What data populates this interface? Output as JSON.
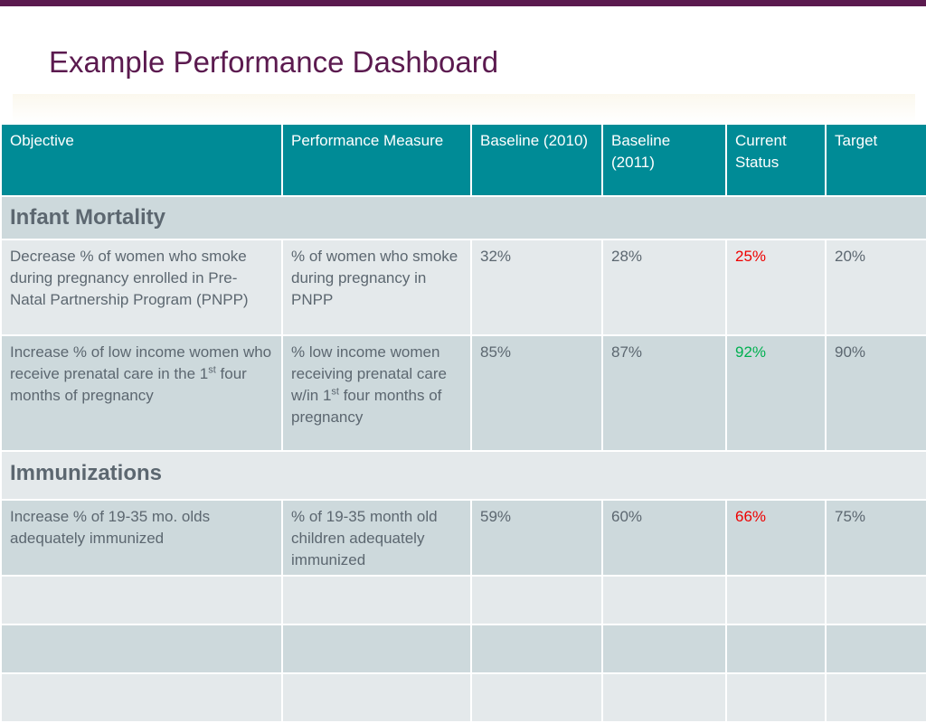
{
  "title": "Example Performance Dashboard",
  "headers": [
    "Objective",
    "Performance Measure",
    "Baseline (2010)",
    "Baseline (2011)",
    "Current Status",
    "Target"
  ],
  "sections": [
    {
      "name": "Infant Mortality",
      "rows": [
        {
          "objective": "Decrease % of women who smoke during pregnancy enrolled in Pre-Natal Partnership Program (PNPP)",
          "measure": "% of women who smoke during pregnancy in PNPP",
          "baseline_2010": "32%",
          "baseline_2011": "28%",
          "current": "25%",
          "current_color": "#ee0000",
          "target": "20%"
        },
        {
          "objective_pre": "Increase % of low income women who receive prenatal care in the 1",
          "objective_sup": "st",
          "objective_post": " four months of pregnancy",
          "measure_pre": "% low income women receiving prenatal care w/in 1",
          "measure_sup": "st",
          "measure_post": " four months of pregnancy",
          "baseline_2010": "85%",
          "baseline_2011": "87%",
          "current": "92%",
          "current_color": "#00b050",
          "target": "90%"
        }
      ]
    },
    {
      "name": "Immunizations",
      "rows": [
        {
          "objective": "Increase % of 19-35 mo. olds adequately immunized",
          "measure": "% of 19-35 month old children adequately immunized",
          "baseline_2010": "59%",
          "baseline_2011": "60%",
          "current": "66%",
          "current_color": "#ee0000",
          "target": "75%"
        }
      ]
    }
  ],
  "colors": {
    "accent": "#5b1a4f",
    "header": "#008b96",
    "row_light": "#e4e9eb",
    "row_dark": "#cdd9dc"
  }
}
